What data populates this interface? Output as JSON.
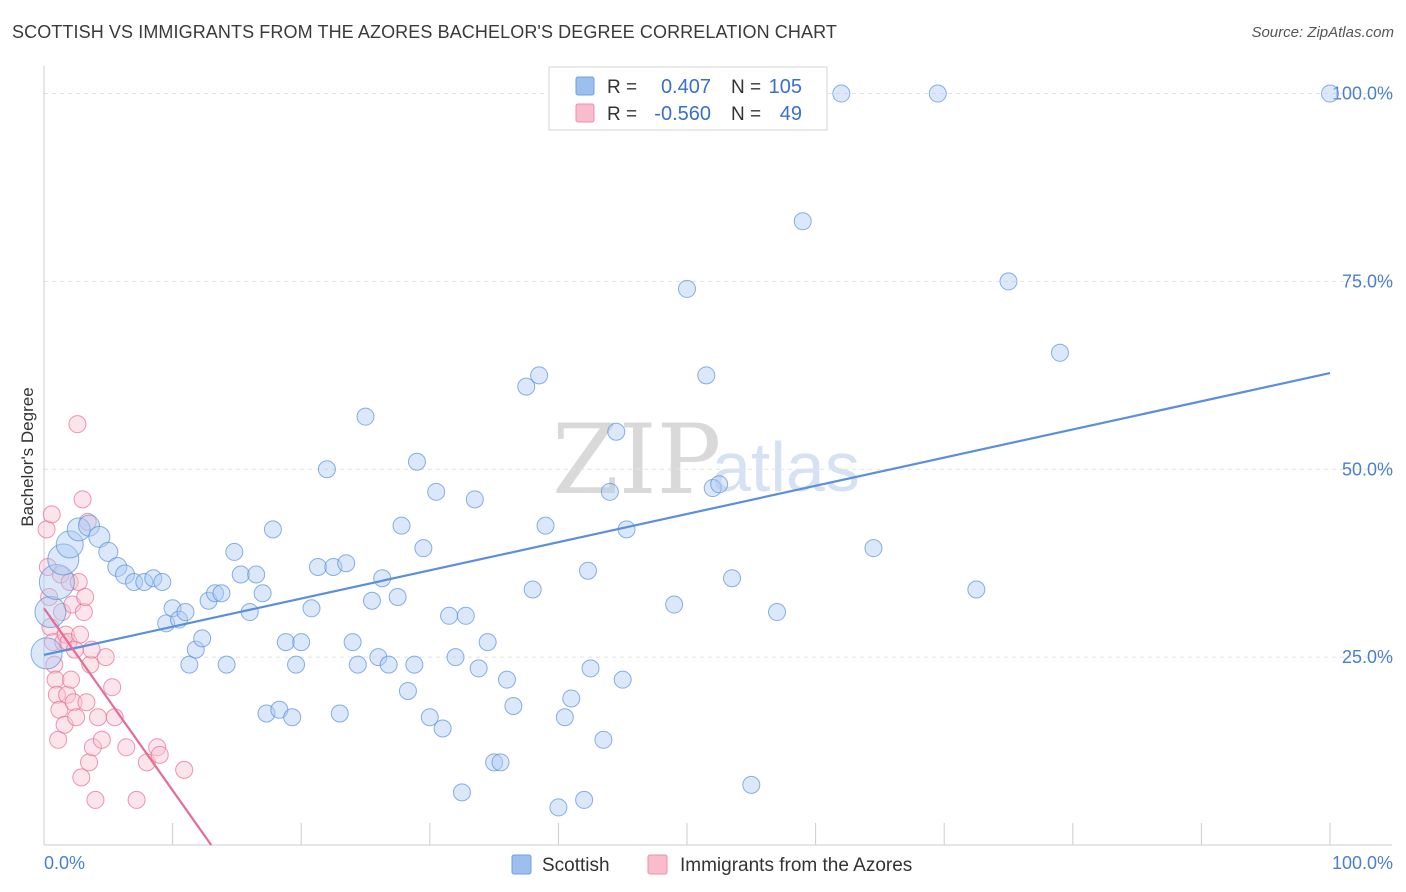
{
  "header": {
    "title": "SCOTTISH VS IMMIGRANTS FROM THE AZORES BACHELOR'S DEGREE CORRELATION CHART",
    "source": "Source: ZipAtlas.com"
  },
  "watermark": {
    "part1": "ZIP",
    "part2": "atlas"
  },
  "legend": {
    "rows": [
      {
        "r_label": "R =",
        "r_value": "0.407",
        "n_label": "N =",
        "n_value": "105",
        "color": "#9dbfee",
        "stroke": "#6f9fe0"
      },
      {
        "r_label": "R =",
        "r_value": "-0.560",
        "n_label": "N =",
        "n_value": "49",
        "color": "#f8bccd",
        "stroke": "#ec8fab"
      }
    ]
  },
  "bottom_legend": {
    "items": [
      {
        "label": "Scottish",
        "color": "#9dbfee",
        "stroke": "#6f9fe0"
      },
      {
        "label": "Immigrants from the Azores",
        "color": "#f8bccd",
        "stroke": "#ec8fab"
      }
    ]
  },
  "chart_data": {
    "type": "scatter",
    "title": "SCOTTISH VS IMMIGRANTS FROM THE AZORES BACHELOR'S DEGREE CORRELATION CHART",
    "xlabel": "",
    "ylabel": "Bachelor's Degree",
    "xlim": [
      0,
      100
    ],
    "ylim": [
      0,
      103
    ],
    "x_tick_labels": [
      "0.0%",
      "100.0%"
    ],
    "y_ticks": [
      25,
      50,
      75,
      100
    ],
    "y_tick_labels": [
      "25.0%",
      "50.0%",
      "75.0%",
      "100.0%"
    ],
    "grid": true,
    "legend_position": "top-center",
    "series": [
      {
        "name": "Scottish",
        "color": "#5b8fdb",
        "fill": "#aecbf2",
        "trend": {
          "x": [
            0,
            100
          ],
          "y": [
            25.3,
            62.8
          ]
        },
        "points": [
          [
            0.2,
            25.5,
            14
          ],
          [
            0.5,
            31,
            14
          ],
          [
            1,
            35,
            16
          ],
          [
            1.5,
            38,
            14
          ],
          [
            2,
            40,
            12
          ],
          [
            2.7,
            42,
            10
          ],
          [
            3.5,
            42.5,
            9
          ],
          [
            4.3,
            41,
            9
          ],
          [
            5,
            39,
            8
          ],
          [
            5.7,
            37,
            8
          ],
          [
            6.3,
            36,
            8
          ],
          [
            7,
            35,
            7
          ],
          [
            7.8,
            35,
            7
          ],
          [
            8.5,
            35.5,
            7
          ],
          [
            9.2,
            35,
            7
          ],
          [
            9.5,
            29.5,
            7
          ],
          [
            10,
            31.5,
            7
          ],
          [
            10.5,
            30,
            7
          ],
          [
            11,
            31,
            7
          ],
          [
            11.3,
            24,
            7
          ],
          [
            11.8,
            26,
            7
          ],
          [
            12.3,
            27.5,
            7
          ],
          [
            12.8,
            32.5,
            7
          ],
          [
            13.3,
            33.5,
            7
          ],
          [
            13.8,
            33.5,
            7
          ],
          [
            14.2,
            24,
            7
          ],
          [
            14.8,
            39,
            7
          ],
          [
            15.3,
            36,
            7
          ],
          [
            16,
            31,
            7
          ],
          [
            16.5,
            36,
            7
          ],
          [
            17,
            33.5,
            7
          ],
          [
            17.3,
            17.5,
            7
          ],
          [
            17.8,
            42,
            7
          ],
          [
            18.3,
            18,
            7
          ],
          [
            18.8,
            27,
            7
          ],
          [
            19.3,
            17,
            7
          ],
          [
            19.6,
            24,
            7
          ],
          [
            20,
            27,
            7
          ],
          [
            20.8,
            31.5,
            7
          ],
          [
            21.3,
            37,
            7
          ],
          [
            22,
            50,
            7
          ],
          [
            22.5,
            37,
            7
          ],
          [
            23,
            17.5,
            7
          ],
          [
            23.5,
            37.5,
            7
          ],
          [
            24,
            27,
            7
          ],
          [
            24.4,
            24,
            7
          ],
          [
            25,
            57,
            7
          ],
          [
            25.5,
            32.5,
            7
          ],
          [
            26,
            25,
            7
          ],
          [
            26.3,
            35.5,
            7
          ],
          [
            26.8,
            24,
            7
          ],
          [
            27.5,
            33,
            7
          ],
          [
            27.8,
            42.5,
            7
          ],
          [
            28.3,
            20.5,
            7
          ],
          [
            28.8,
            24,
            7
          ],
          [
            29,
            51,
            7
          ],
          [
            29.5,
            39.5,
            7
          ],
          [
            30,
            17,
            7
          ],
          [
            30.5,
            47,
            7
          ],
          [
            31,
            15.5,
            7
          ],
          [
            31.5,
            30.5,
            7
          ],
          [
            32,
            25,
            7
          ],
          [
            32.5,
            7,
            7
          ],
          [
            32.8,
            30.5,
            7
          ],
          [
            33.5,
            46,
            7
          ],
          [
            33.8,
            23.5,
            7
          ],
          [
            34.5,
            27,
            7
          ],
          [
            35,
            11,
            7
          ],
          [
            35.5,
            11,
            7
          ],
          [
            36,
            22,
            7
          ],
          [
            36.5,
            18.5,
            7
          ],
          [
            37.5,
            61,
            7
          ],
          [
            38,
            34,
            7
          ],
          [
            38.5,
            62.5,
            7
          ],
          [
            39,
            42.5,
            7
          ],
          [
            40,
            5,
            7
          ],
          [
            40.5,
            17,
            7
          ],
          [
            41,
            19.5,
            7
          ],
          [
            42,
            6,
            7
          ],
          [
            42.3,
            36.5,
            7
          ],
          [
            42.5,
            23.5,
            7
          ],
          [
            43.5,
            14,
            7
          ],
          [
            44,
            47,
            7
          ],
          [
            44.5,
            55,
            7
          ],
          [
            45,
            22,
            7
          ],
          [
            45.3,
            42,
            7
          ],
          [
            49,
            32,
            7
          ],
          [
            50,
            74,
            7
          ],
          [
            51.5,
            62.5,
            7
          ],
          [
            52,
            47.5,
            7
          ],
          [
            52.5,
            48,
            7
          ],
          [
            53.5,
            35.5,
            7
          ],
          [
            55,
            8,
            7
          ],
          [
            57,
            31,
            7
          ],
          [
            59,
            83,
            7
          ],
          [
            62,
            100,
            7
          ],
          [
            64.5,
            39.5,
            7
          ],
          [
            69.5,
            100,
            7
          ],
          [
            72.5,
            34,
            7
          ],
          [
            75,
            75,
            7
          ],
          [
            79,
            65.5,
            7
          ],
          [
            100,
            100,
            7
          ]
        ]
      },
      {
        "name": "Immigrants from the Azores",
        "color": "#e66b95",
        "fill": "#f9c3d3",
        "trend": {
          "x": [
            0,
            13
          ],
          "y": [
            31.5,
            0
          ]
        },
        "points": [
          [
            0.2,
            42,
            7
          ],
          [
            0.3,
            37,
            7
          ],
          [
            0.4,
            33,
            7
          ],
          [
            0.5,
            29,
            7
          ],
          [
            0.6,
            44,
            7
          ],
          [
            0.7,
            27,
            7
          ],
          [
            0.8,
            24,
            7
          ],
          [
            0.9,
            22,
            7
          ],
          [
            1,
            20,
            7
          ],
          [
            1.1,
            14,
            7
          ],
          [
            1.2,
            18,
            7
          ],
          [
            1.3,
            36,
            7
          ],
          [
            1.4,
            31,
            7
          ],
          [
            1.5,
            27,
            7
          ],
          [
            1.6,
            16,
            7
          ],
          [
            1.7,
            28,
            7
          ],
          [
            1.8,
            20,
            7
          ],
          [
            1.9,
            27,
            7
          ],
          [
            2,
            35,
            7
          ],
          [
            2.1,
            22,
            7
          ],
          [
            2.2,
            32,
            7
          ],
          [
            2.3,
            19,
            7
          ],
          [
            2.4,
            26,
            7
          ],
          [
            2.5,
            17,
            7
          ],
          [
            2.6,
            56,
            7
          ],
          [
            2.7,
            35,
            7
          ],
          [
            2.8,
            28,
            7
          ],
          [
            2.9,
            9,
            7
          ],
          [
            3,
            46,
            7
          ],
          [
            3.1,
            31,
            7
          ],
          [
            3.2,
            33,
            7
          ],
          [
            3.3,
            19,
            7
          ],
          [
            3.4,
            43,
            7
          ],
          [
            3.5,
            11,
            7
          ],
          [
            3.6,
            24,
            7
          ],
          [
            3.8,
            13,
            7
          ],
          [
            4,
            6,
            7
          ],
          [
            4.2,
            17,
            7
          ],
          [
            4.5,
            14,
            7
          ],
          [
            4.8,
            25,
            7
          ],
          [
            5.3,
            21,
            7
          ],
          [
            5.5,
            17,
            7
          ],
          [
            6.4,
            13,
            7
          ],
          [
            7.2,
            6,
            7
          ],
          [
            8,
            11,
            7
          ],
          [
            8.8,
            13,
            7
          ],
          [
            9,
            12,
            7
          ],
          [
            10.9,
            10,
            7
          ],
          [
            3.7,
            26,
            7
          ]
        ]
      }
    ]
  }
}
